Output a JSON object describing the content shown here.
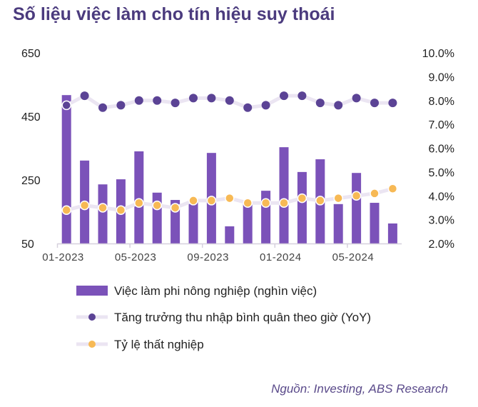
{
  "title": "Số liệu việc làm cho tín hiệu suy thoái",
  "source": "Nguồn: Investing, ABS Research",
  "chart_data": {
    "type": "bar",
    "title": "Số liệu việc làm cho tín hiệu suy thoái",
    "categories": [
      "01-2023",
      "02-2023",
      "03-2023",
      "04-2023",
      "05-2023",
      "06-2023",
      "07-2023",
      "08-2023",
      "09-2023",
      "10-2023",
      "11-2023",
      "12-2023",
      "01-2024",
      "02-2024",
      "03-2024",
      "04-2024",
      "05-2024",
      "06-2024",
      "07-2024"
    ],
    "x_tick_labels": [
      "01-2023",
      "05-2023",
      "09-2023",
      "01-2024",
      "05-2024"
    ],
    "y_left": {
      "range": [
        50,
        650
      ],
      "ticks": [
        "650",
        "450",
        "250",
        "50"
      ]
    },
    "y_right": {
      "range": [
        2.0,
        10.0
      ],
      "ticks": [
        "10.0%",
        "9.0%",
        "8.0%",
        "7.0%",
        "6.0%",
        "5.0%",
        "4.0%",
        "3.0%",
        "2.0%"
      ]
    },
    "series": [
      {
        "name": "Việc làm phi nông nghiệp (nghìn việc)",
        "type": "bar",
        "axis": "left",
        "color": "#7b52b9",
        "values": [
          517,
          311,
          236,
          252,
          340,
          210,
          187,
          180,
          335,
          104,
          176,
          216,
          353,
          275,
          315,
          174,
          272,
          178,
          113
        ]
      },
      {
        "name": "Tăng trưởng thu nhập bình quân theo giờ (YoY)",
        "type": "line",
        "axis": "right",
        "color": "#5b4395",
        "line_color": "#ebe5f2",
        "values": [
          7.8,
          8.2,
          7.7,
          7.8,
          8.0,
          8.0,
          7.9,
          8.1,
          8.1,
          8.0,
          7.7,
          7.8,
          8.2,
          8.2,
          7.9,
          7.8,
          8.1,
          7.9,
          7.9
        ]
      },
      {
        "name": "Tỷ lệ thất nghiệp",
        "type": "line",
        "axis": "right",
        "color": "#f7b955",
        "line_color": "#ebe5f2",
        "values": [
          3.4,
          3.6,
          3.5,
          3.4,
          3.7,
          3.6,
          3.5,
          3.8,
          3.8,
          3.9,
          3.7,
          3.7,
          3.7,
          3.9,
          3.8,
          3.9,
          4.0,
          4.1,
          4.3
        ]
      }
    ],
    "legend_placement": "bottom",
    "grid": false
  }
}
